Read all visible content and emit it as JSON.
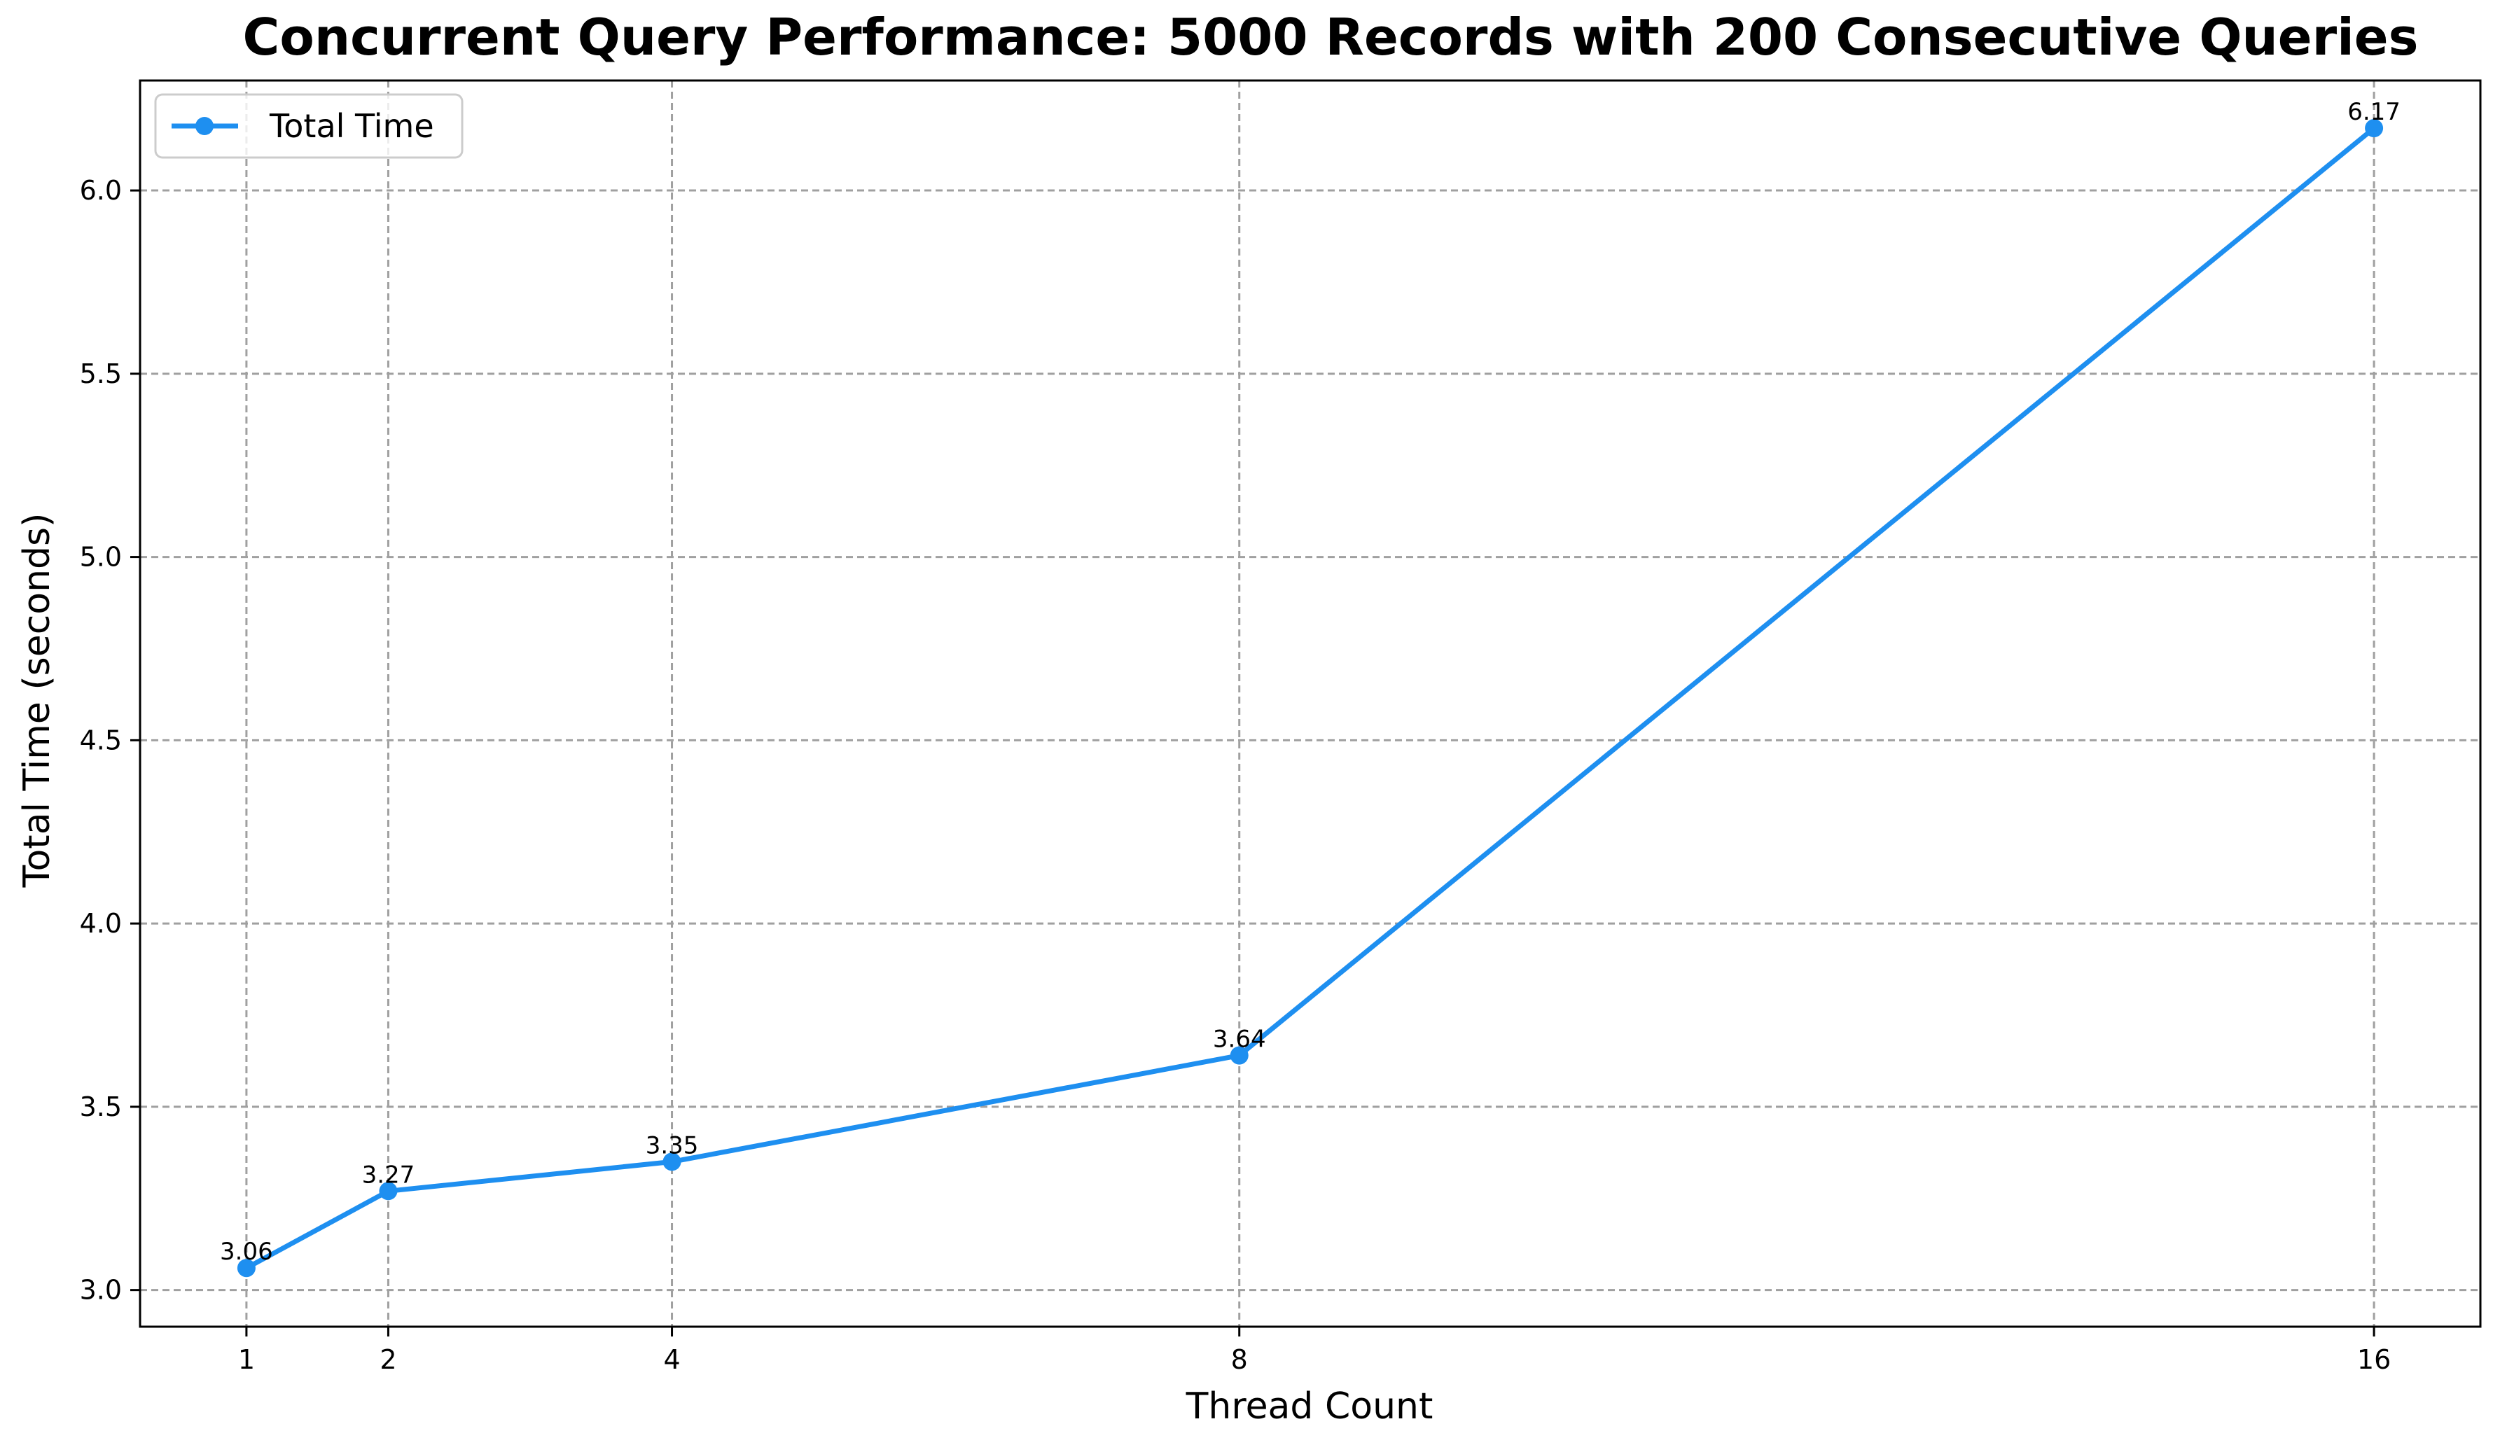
{
  "chart_data": {
    "type": "line",
    "title": "Concurrent Query Performance: 5000 Records with 200 Consecutive Queries",
    "xlabel": "Thread Count",
    "ylabel": "Total Time (seconds)",
    "x": [
      1,
      2,
      4,
      8,
      16
    ],
    "x_tick_labels": [
      "1",
      "2",
      "4",
      "8",
      "16"
    ],
    "xlim": [
      0.25,
      16.75
    ],
    "ylim": [
      2.9,
      6.3
    ],
    "y_ticks": [
      3.0,
      3.5,
      4.0,
      4.5,
      5.0,
      5.5,
      6.0
    ],
    "y_tick_labels": [
      "3.0",
      "3.5",
      "4.0",
      "4.5",
      "5.0",
      "5.5",
      "6.0"
    ],
    "series": [
      {
        "name": "Total Time",
        "values": [
          3.06,
          3.27,
          3.35,
          3.64,
          6.17
        ],
        "data_labels": [
          "3.06",
          "3.27",
          "3.35",
          "3.64",
          "6.17"
        ],
        "color": "#1e8ff0",
        "marker": "circle"
      }
    ],
    "grid": true,
    "grid_style": "dashed",
    "legend_position": "top-left"
  }
}
